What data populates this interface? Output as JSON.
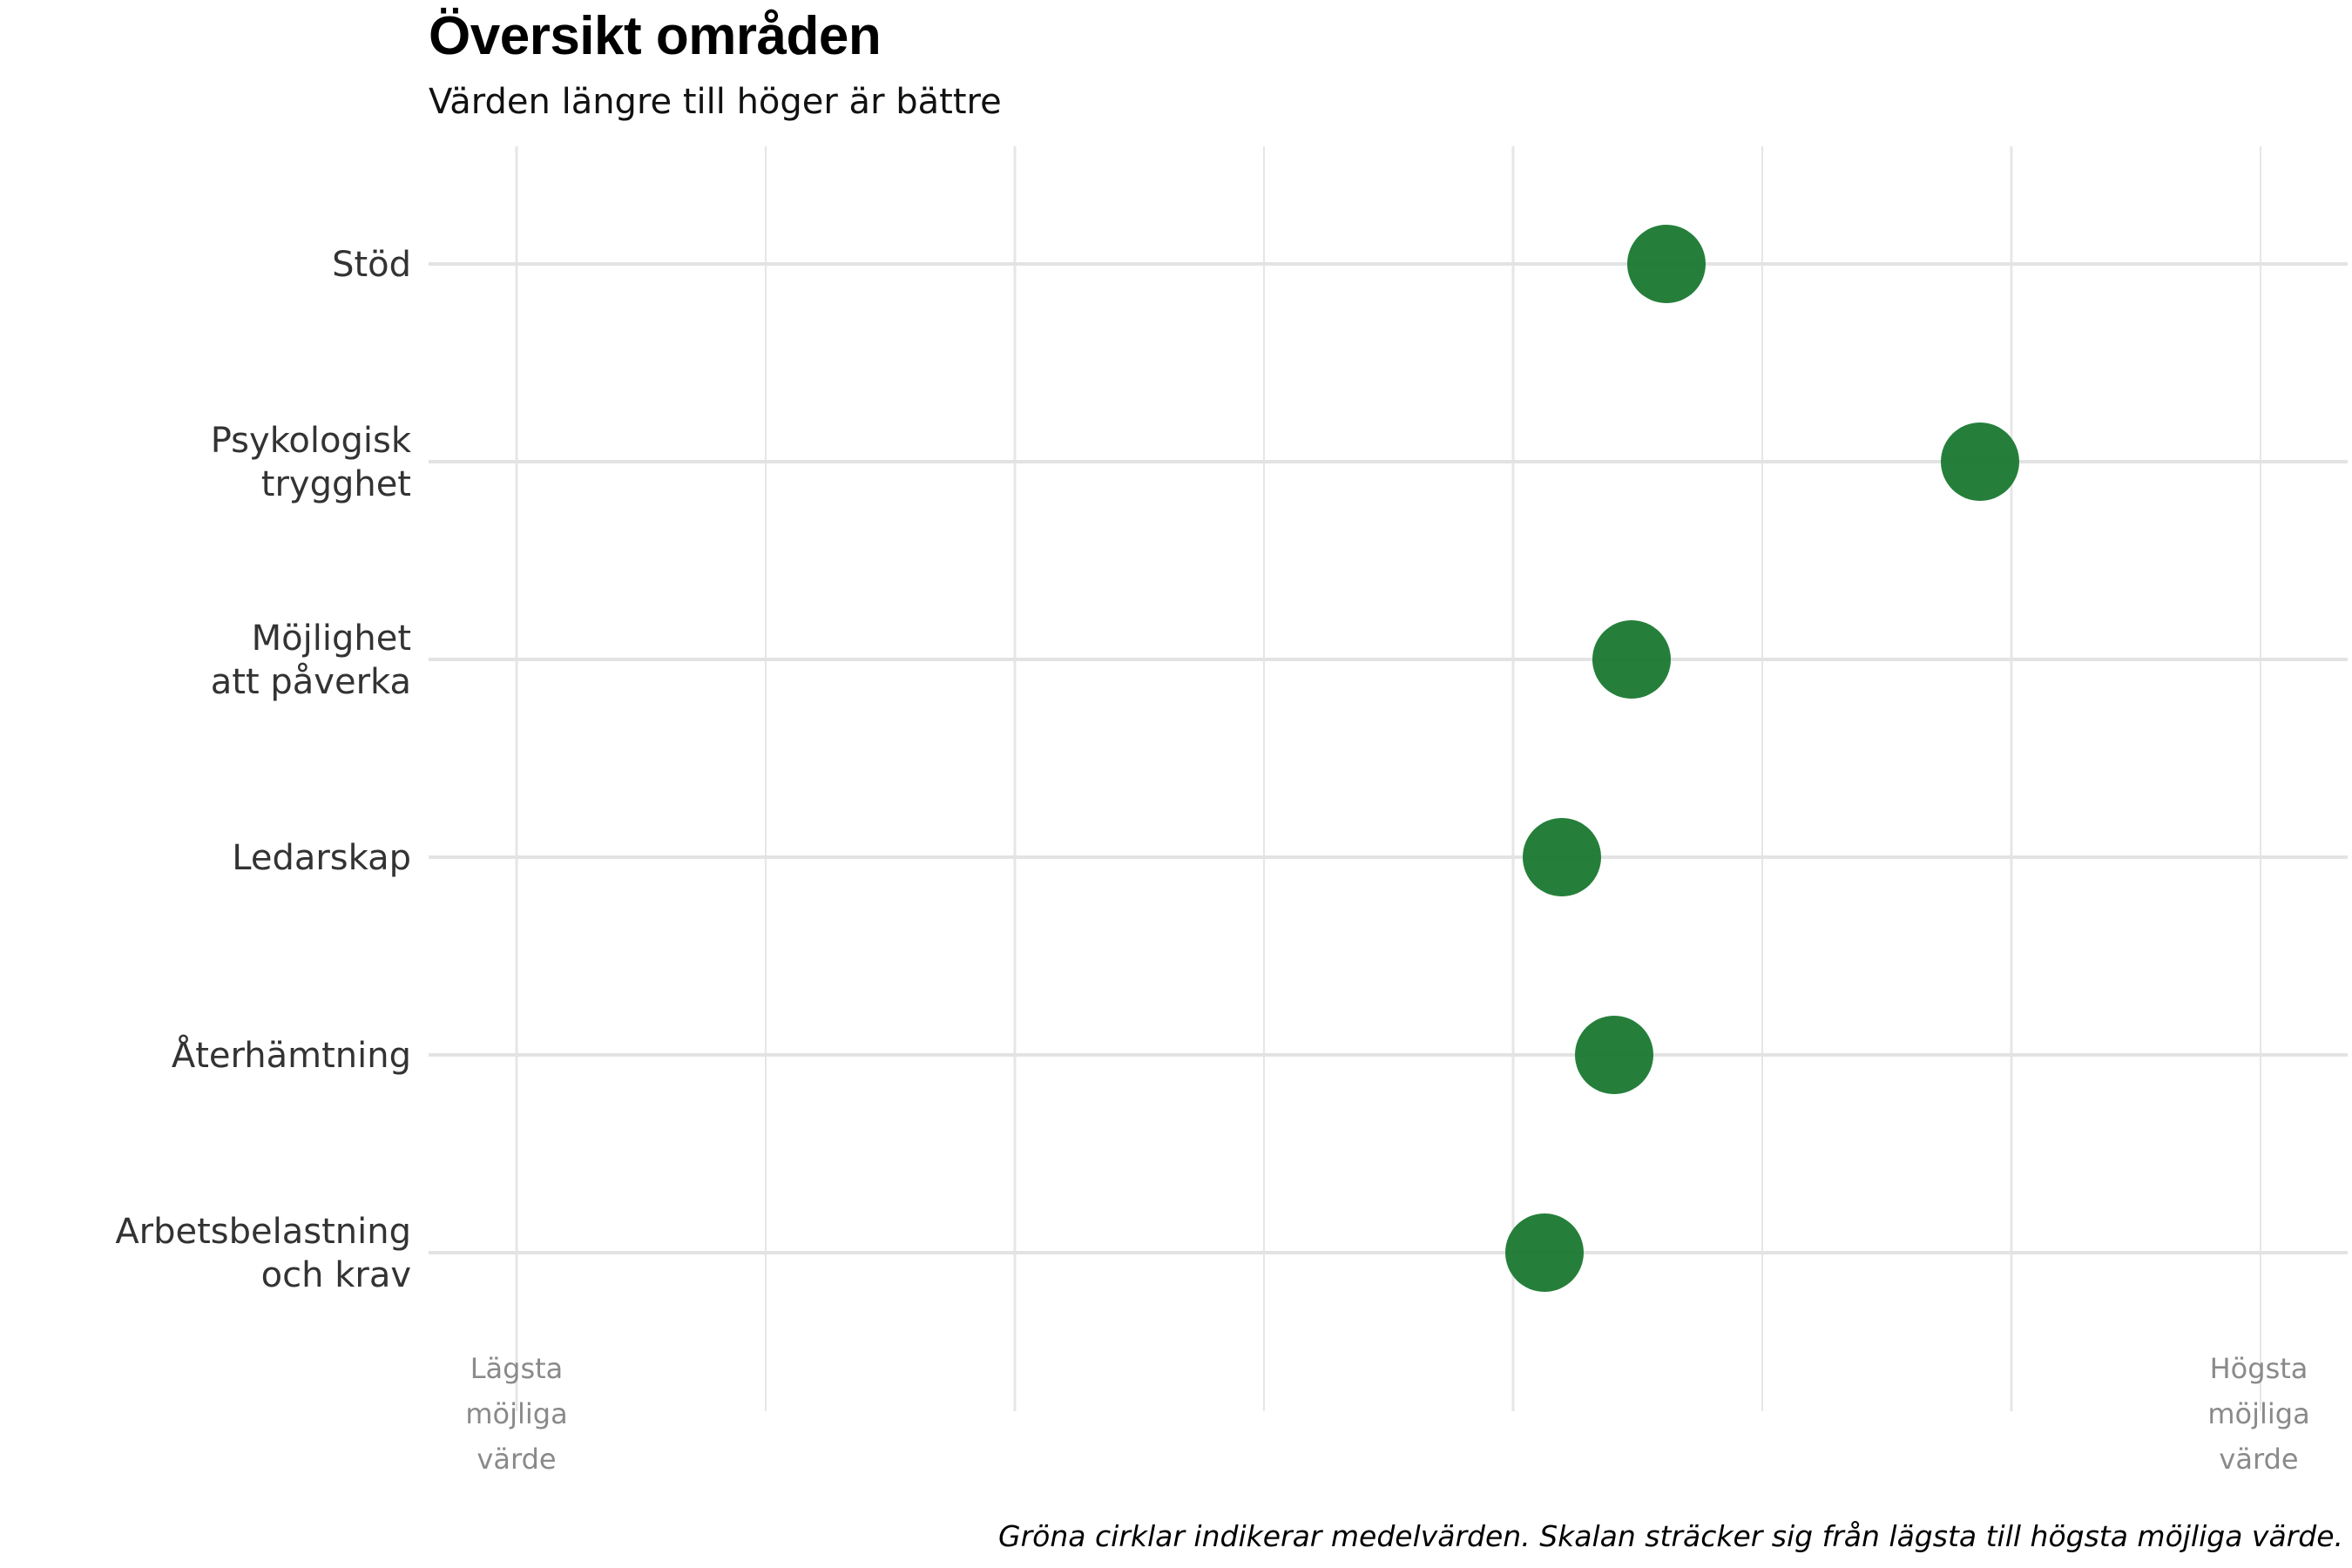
{
  "chart_data": {
    "type": "scatter",
    "title": "Översikt områden",
    "subtitle": "Värden längre till höger är bättre",
    "caption": "Gröna cirklar indikerar medelvärden. Skalan sträcker sig från lägsta till högsta möjliga värde.",
    "categories": [
      [
        "Stöd"
      ],
      [
        "Psykologisk",
        "trygghet"
      ],
      [
        "Möjlighet",
        "att påverka"
      ],
      [
        "Ledarskap"
      ],
      [
        "Återhämtning"
      ],
      [
        "Arbetsbelastning",
        "och krav"
      ]
    ],
    "values": [
      0.66,
      0.84,
      0.64,
      0.6,
      0.63,
      0.59
    ],
    "xlim": [
      0,
      1
    ],
    "x_axis_labels": {
      "min": [
        "Lägsta",
        "möjliga",
        "värde"
      ],
      "max": [
        "Högsta",
        "möjliga",
        "värde"
      ]
    },
    "grid": true,
    "point_color": "#1e7b34"
  }
}
